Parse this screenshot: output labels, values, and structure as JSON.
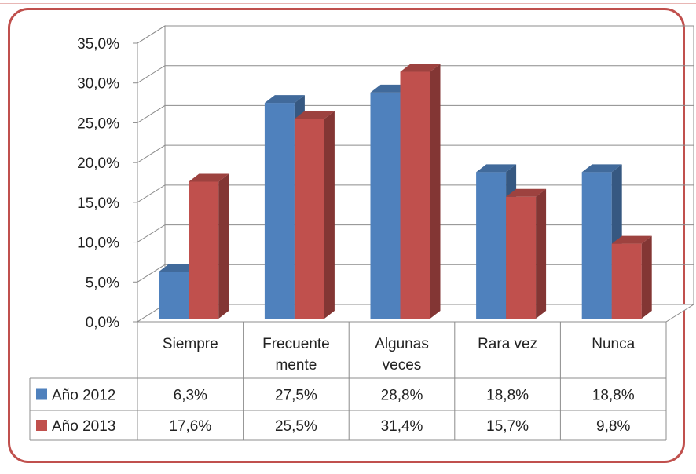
{
  "chart_data": {
    "type": "bar",
    "style": "3d-clustered-column-with-data-table",
    "categories": [
      "Siempre",
      "Frecuente\nmente",
      "Algunas\nveces",
      "Rara vez",
      "Nunca"
    ],
    "series": [
      {
        "name": "Año 2012",
        "color": "#4f81bd",
        "values": [
          6.3,
          27.5,
          28.8,
          18.8,
          18.8
        ],
        "labels": [
          "6,3%",
          "27,5%",
          "28,8%",
          "18,8%",
          "18,8%"
        ]
      },
      {
        "name": "Año 2013",
        "color": "#c0504d",
        "values": [
          17.6,
          25.5,
          31.4,
          15.7,
          9.8
        ],
        "labels": [
          "17,6%",
          "25,5%",
          "31,4%",
          "15,7%",
          "9,8%"
        ]
      }
    ],
    "yticks": [
      "0,0%",
      "5,0%",
      "10,0%",
      "15,0%",
      "20,0%",
      "25,0%",
      "30,0%",
      "35,0%"
    ],
    "ylim": [
      0,
      35
    ],
    "grid": true,
    "legend": "in-data-table"
  }
}
